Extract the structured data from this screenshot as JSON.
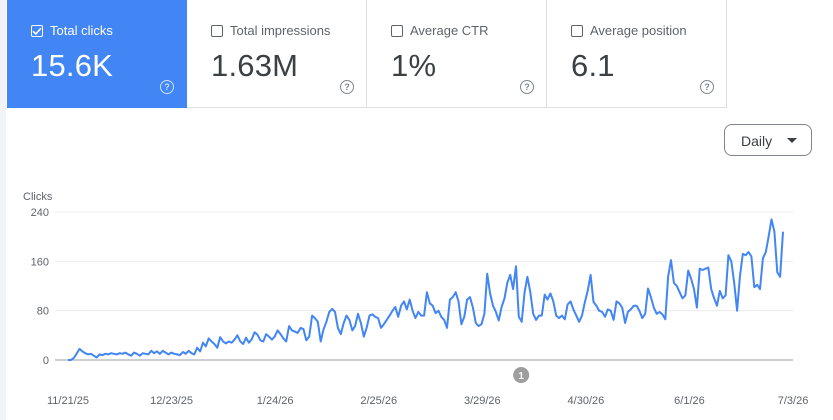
{
  "metrics": [
    {
      "label": "Total clicks",
      "value": "15.6K",
      "checked": true,
      "color": "#4285f4"
    },
    {
      "label": "Total impressions",
      "value": "1.63M",
      "checked": false
    },
    {
      "label": "Average CTR",
      "value": "1%",
      "checked": false
    },
    {
      "label": "Average position",
      "value": "6.1",
      "checked": false
    }
  ],
  "help_glyph": "?",
  "granularity": {
    "label": "Daily",
    "icon": "arrow-drop-down-icon"
  },
  "annotation": {
    "label": "1",
    "date": "4/10/26"
  },
  "chart_data": {
    "type": "line",
    "ylabel": "Clicks",
    "ylim": [
      0,
      240
    ],
    "yticks": [
      "240",
      "160",
      "80",
      "0"
    ],
    "ytick_values": [
      240,
      160,
      80,
      0
    ],
    "xtick_labels": [
      "11/21/25",
      "12/23/25",
      "1/24/26",
      "2/25/26",
      "3/29/26",
      "4/30/26",
      "6/1/26",
      "7/3/26"
    ],
    "x_start": "11/21/25",
    "x_end": "7/7/26",
    "line_color": "#4285f4",
    "grid": true,
    "series": [
      {
        "values": [
          0,
          0,
          3,
          10,
          18,
          14,
          11,
          9,
          10,
          7,
          4,
          9,
          8,
          10,
          9,
          11,
          10,
          9,
          11,
          10,
          12,
          9,
          7,
          12,
          10,
          7,
          11,
          10,
          9,
          15,
          11,
          14,
          10,
          15,
          12,
          9,
          12,
          10,
          9,
          8,
          13,
          10,
          15,
          11,
          9,
          20,
          14,
          28,
          22,
          35,
          30,
          26,
          20,
          37,
          30,
          27,
          30,
          28,
          33,
          40,
          30,
          26,
          36,
          28,
          34,
          45,
          41,
          32,
          30,
          42,
          38,
          33,
          38,
          48,
          42,
          35,
          30,
          55,
          48,
          46,
          44,
          52,
          50,
          32,
          38,
          72,
          68,
          62,
          30,
          50,
          62,
          78,
          83,
          78,
          52,
          42,
          60,
          72,
          65,
          48,
          55,
          75,
          60,
          38,
          52,
          72,
          74,
          70,
          68,
          52,
          58,
          65,
          72,
          80,
          86,
          70,
          88,
          95,
          82,
          98,
          80,
          68,
          78,
          72,
          72,
          110,
          92,
          88,
          76,
          80,
          70,
          65,
          52,
          98,
          102,
          110,
          95,
          58,
          70,
          98,
          102,
          85,
          60,
          55,
          58,
          75,
          140,
          108,
          88,
          78,
          64,
          86,
          100,
          125,
          138,
          115,
          152,
          70,
          62,
          110,
          135,
          110,
          75,
          65,
          72,
          72,
          106,
          98,
          108,
          95,
          72,
          68,
          72,
          66,
          90,
          95,
          82,
          72,
          62,
          72,
          94,
          112,
          138,
          94,
          88,
          80,
          78,
          70,
          82,
          80,
          65,
          95,
          92,
          85,
          60,
          78,
          82,
          88,
          88,
          80,
          68,
          75,
          116,
          102,
          85,
          75,
          78,
          74,
          66,
          135,
          162,
          125,
          120,
          110,
          100,
          105,
          145,
          132,
          115,
          85,
          148,
          146,
          148,
          150,
          115,
          100,
          88,
          112,
          100,
          105,
          170,
          160,
          125,
          80,
          135,
          172,
          170,
          175,
          168,
          118,
          122,
          115,
          165,
          175,
          200,
          228,
          208,
          142,
          135,
          208
        ],
        "color": "#4285f4"
      }
    ]
  }
}
